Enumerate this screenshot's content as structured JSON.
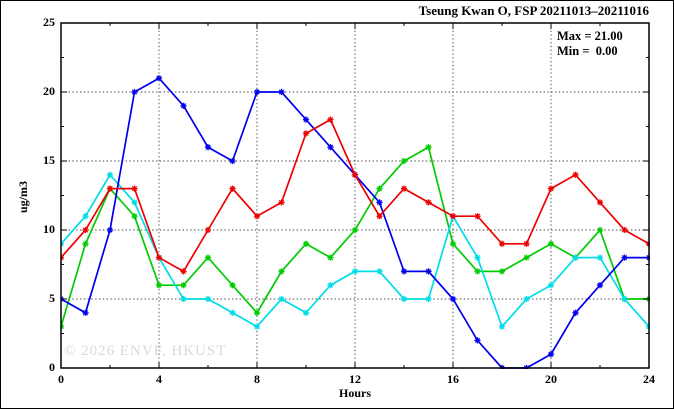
{
  "title": "Tseung Kwan O, FSP 20211013–20211016",
  "annotation": {
    "max_label": "Max = 21.00",
    "min_label": "Min =  0.00"
  },
  "watermark": "© 2026 ENVF, HKUST",
  "chart_data": {
    "type": "line",
    "title": "Tseung Kwan O, FSP 20211013–20211016",
    "xlabel": "Hours",
    "ylabel": "ug/m3",
    "xlim": [
      0,
      24
    ],
    "ylim": [
      0,
      25
    ],
    "x_major_ticks": [
      0,
      4,
      8,
      12,
      16,
      20,
      24
    ],
    "x_minor_step": 2,
    "y_major_ticks": [
      0,
      5,
      10,
      15,
      20,
      25
    ],
    "y_minor_step": 2.5,
    "grid": "dotted vertical at hours 4,8,12,16,20 and horizontal at 5,10,15,20",
    "legend_position": "none",
    "marker": "asterisk",
    "stat_max": 21.0,
    "stat_min": 0.0,
    "x": [
      0,
      1,
      2,
      3,
      4,
      5,
      6,
      7,
      8,
      9,
      10,
      11,
      12,
      13,
      14,
      15,
      16,
      17,
      18,
      19,
      20,
      21,
      22,
      23,
      24
    ],
    "series": [
      {
        "name": "series-green",
        "color": "#00cc00",
        "values": [
          3,
          9,
          13,
          11,
          6,
          6,
          8,
          6,
          4,
          7,
          9,
          8,
          10,
          13,
          15,
          16,
          9,
          7,
          7,
          8,
          9,
          8,
          10,
          5,
          5
        ]
      },
      {
        "name": "series-cyan",
        "color": "#00dde8",
        "values": [
          9,
          11,
          14,
          12,
          8,
          5,
          5,
          4,
          3,
          5,
          4,
          6,
          7,
          7,
          5,
          5,
          11,
          8,
          3,
          5,
          6,
          8,
          8,
          5,
          3
        ]
      },
      {
        "name": "series-blue",
        "color": "#0000ee",
        "values": [
          5,
          4,
          10,
          20,
          21,
          19,
          16,
          15,
          20,
          20,
          18,
          16,
          14,
          12,
          7,
          7,
          5,
          2,
          0,
          0,
          1,
          4,
          6,
          8,
          8
        ]
      },
      {
        "name": "series-red",
        "color": "#ee0000",
        "values": [
          8,
          10,
          13,
          13,
          8,
          7,
          10,
          13,
          11,
          12,
          17,
          18,
          14,
          11,
          13,
          12,
          11,
          11,
          9,
          9,
          13,
          14,
          12,
          10,
          9
        ]
      }
    ]
  },
  "layout_colors": {
    "frame": "#000000",
    "grid": "#444444",
    "background": "#ffffff"
  }
}
